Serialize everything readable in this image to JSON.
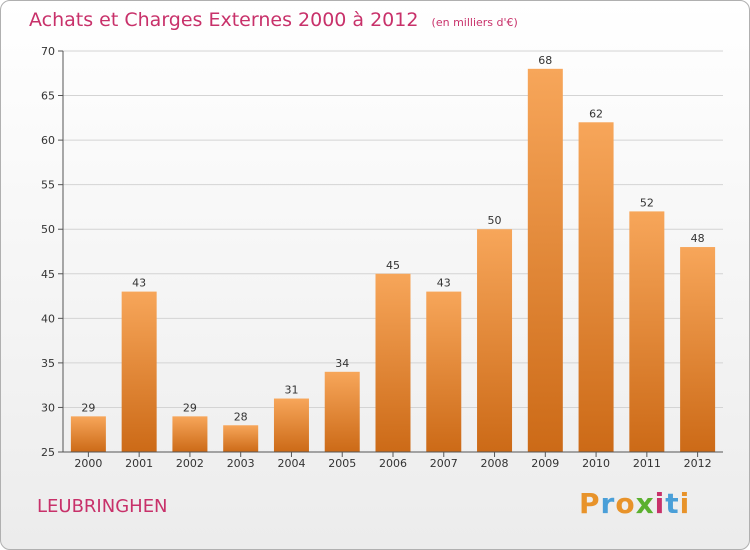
{
  "header": {
    "title": "Achats et Charges Externes 2000 à 2012",
    "subtitle": "(en milliers d'€)"
  },
  "footer": {
    "town": "LEUBRINGHEN",
    "logo_letters": [
      "P",
      "r",
      "o",
      "x",
      "i",
      "t",
      "i"
    ],
    "logo_colors": [
      "#e8932a",
      "#4a9fd8",
      "#e8932a",
      "#5bb02f",
      "#c8316a",
      "#4a9fd8",
      "#e8932a"
    ]
  },
  "chart_data": {
    "type": "bar",
    "categories": [
      "2000",
      "2001",
      "2002",
      "2003",
      "2004",
      "2005",
      "2006",
      "2007",
      "2008",
      "2009",
      "2010",
      "2011",
      "2012"
    ],
    "values": [
      29,
      43,
      29,
      28,
      31,
      34,
      45,
      43,
      50,
      68,
      62,
      52,
      48
    ],
    "ylim": [
      25,
      70
    ],
    "yticks": [
      25,
      30,
      35,
      40,
      45,
      50,
      55,
      60,
      65,
      70
    ],
    "grid": true,
    "bar_color_top": "#f7a65a",
    "bar_color_bottom": "#cc6a17"
  }
}
